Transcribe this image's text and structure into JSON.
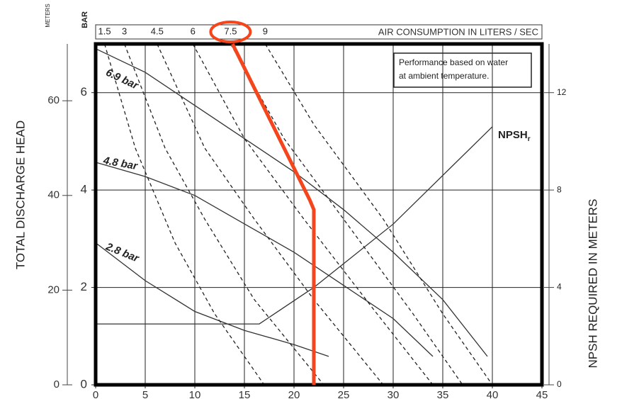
{
  "chart_data": {
    "type": "line",
    "y_unit": "METERS",
    "y2_unit": "BAR",
    "top_axis_title": "AIR CONSUMPTION IN LITERS / SEC",
    "note": [
      "Performance based on water",
      "at ambient temperature."
    ],
    "ylabel": "TOTAL DISCHARGE HEAD",
    "y3label": "NPSH REQUIRED IN METERS",
    "xlim": [
      0,
      45
    ],
    "xticks": [
      0,
      5,
      10,
      15,
      20,
      25,
      30,
      35,
      40,
      45
    ],
    "ylim": [
      0,
      72
    ],
    "yticks": [
      0,
      20,
      40,
      60
    ],
    "y2lim": [
      0,
      7
    ],
    "y2ticks": [
      0,
      2,
      4,
      6
    ],
    "y3lim": [
      0,
      14
    ],
    "y3ticks": [
      0,
      4,
      8,
      12
    ],
    "grid": true,
    "series": [
      {
        "name": "6.9 bar",
        "color": "#333333",
        "style": "solid",
        "x": [
          0,
          5,
          10,
          15,
          20,
          25,
          30,
          35,
          39.5
        ],
        "values": [
          71,
          66,
          59,
          52,
          45,
          37,
          28,
          18,
          6
        ]
      },
      {
        "name": "4.8 bar",
        "color": "#333333",
        "style": "solid",
        "x": [
          0,
          5,
          10,
          15,
          20,
          25,
          30,
          34
        ],
        "values": [
          47,
          44,
          40,
          34,
          28,
          21,
          14,
          6
        ]
      },
      {
        "name": "2.8 bar",
        "color": "#333333",
        "style": "solid",
        "x": [
          0,
          5,
          10,
          15,
          20,
          23.5
        ],
        "values": [
          30,
          22,
          15.5,
          11.5,
          8.5,
          6
        ]
      },
      {
        "name": "NPSH",
        "subscript": "r",
        "color": "#333333",
        "style": "solid",
        "axis": "y3",
        "x": [
          0,
          16.5,
          22,
          30,
          40
        ],
        "values": [
          2.5,
          2.5,
          4,
          6.6,
          10.6
        ]
      },
      {
        "name": "1.5",
        "color": "#222222",
        "style": "dashed",
        "x": [
          0.9,
          4,
          8,
          12,
          17
        ],
        "values": [
          72,
          50,
          30,
          15,
          0
        ]
      },
      {
        "name": "3",
        "color": "#222222",
        "style": "dashed",
        "x": [
          2.9,
          7,
          11,
          16,
          23
        ],
        "values": [
          72,
          50,
          35,
          18,
          0
        ]
      },
      {
        "name": "4.5",
        "color": "#222222",
        "style": "dashed",
        "x": [
          6.2,
          11,
          16,
          22,
          29
        ],
        "values": [
          72,
          50,
          35,
          18,
          0
        ]
      },
      {
        "name": "6",
        "color": "#222222",
        "style": "dashed",
        "x": [
          9.8,
          15,
          21,
          28,
          34
        ],
        "values": [
          72,
          52,
          35,
          16,
          0
        ]
      },
      {
        "name": "7.5",
        "color": "#222222",
        "style": "dashed",
        "x": [
          13.6,
          19,
          25,
          32,
          37
        ],
        "values": [
          72,
          52,
          35,
          15,
          0
        ]
      },
      {
        "name": "9",
        "color": "#222222",
        "style": "dashed",
        "x": [
          17.1,
          22,
          29,
          35,
          40
        ],
        "values": [
          72,
          55,
          35,
          15,
          0
        ]
      }
    ],
    "annotation": {
      "color": "#f5451c",
      "x": [
        13.8,
        21.6,
        22,
        22
      ],
      "values": [
        72,
        39,
        37,
        0
      ]
    }
  }
}
